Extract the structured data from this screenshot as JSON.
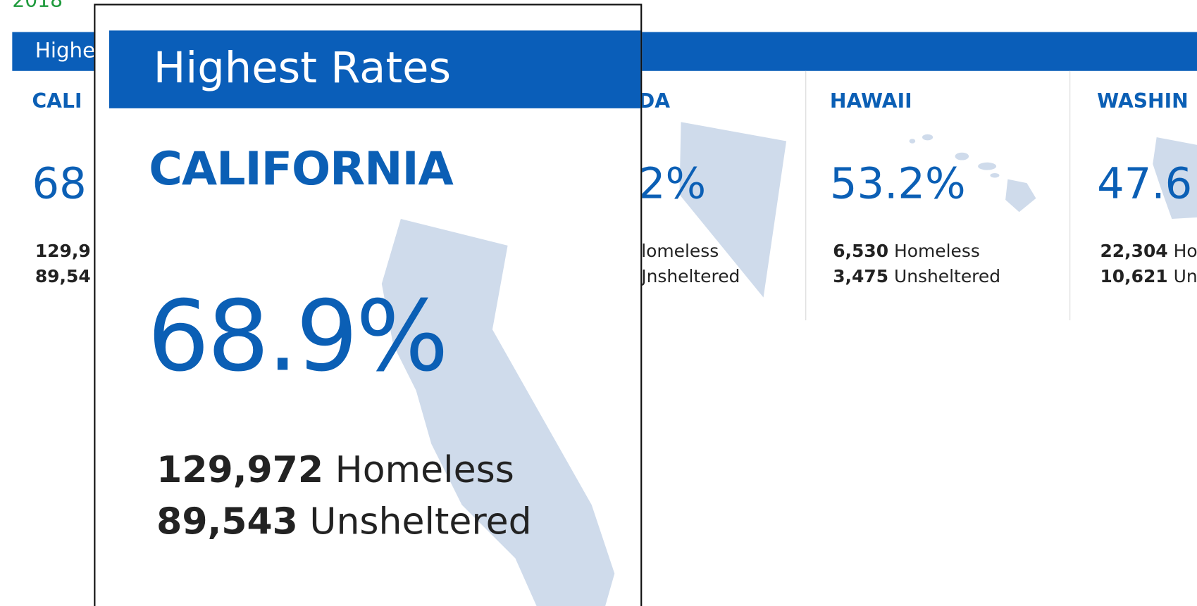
{
  "page": {
    "year": "2018",
    "header": "Highe"
  },
  "columns": [
    {
      "state": "CALI",
      "rate": "68",
      "homeless": {
        "number": "129,9",
        "label": ""
      },
      "unsheltered": {
        "number": "89,54",
        "label": ""
      }
    },
    {
      "state": "DA",
      "rate": "2%",
      "homeless": {
        "number": "",
        "label": "lomeless"
      },
      "unsheltered": {
        "number": "",
        "label": "Jnsheltered"
      }
    },
    {
      "state": "HAWAII",
      "rate": "53.2%",
      "homeless": {
        "number": "6,530",
        "label": "Homeless"
      },
      "unsheltered": {
        "number": "3,475",
        "label": "Unsheltered"
      }
    },
    {
      "state": "WASHIN",
      "rate": "47.6",
      "homeless": {
        "number": "22,304",
        "label": "Ho"
      },
      "unsheltered": {
        "number": "10,621",
        "label": "Un"
      }
    }
  ],
  "overlay": {
    "title": "Highest Rates",
    "state": "CALIFORNIA",
    "rate": "68.9%",
    "homeless": {
      "number": "129,972",
      "label": "Homeless"
    },
    "unsheltered": {
      "number": "89,543",
      "label": "Unsheltered"
    }
  }
}
